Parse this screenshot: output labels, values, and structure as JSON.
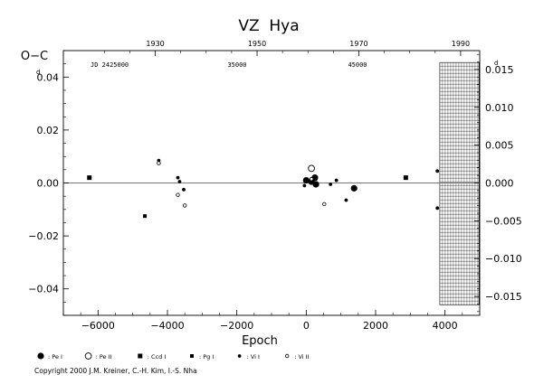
{
  "chart_data": {
    "type": "scatter",
    "title": "VZ  Hya",
    "xlabel": "Epoch",
    "ylabel": "O−C",
    "xlim": [
      -7000,
      5000
    ],
    "ylim": [
      -0.05,
      0.05
    ],
    "y2lim": [
      -0.0175,
      0.0175
    ],
    "x_ticks": [
      "−6000",
      "−4000",
      "−2000",
      "0",
      "2000",
      "4000"
    ],
    "y_ticks": [
      "0.04",
      "0.02",
      "0.00",
      "−0.02",
      "−0.04"
    ],
    "y2_ticks": [
      "0.015",
      "0.010",
      "0.005",
      "0.000",
      "−0.005",
      "−0.010",
      "−0.015"
    ],
    "top_year_ticks": [
      "1930",
      "1950",
      "1970",
      "1990"
    ],
    "top_jd_labels": [
      "JD 2425000",
      "35000",
      "45000"
    ],
    "y_left_corner_exponent": "d",
    "y_right_corner_exponent": "d",
    "series": [
      {
        "name": "Pe I",
        "marker": "filled-circle",
        "size": "large",
        "points": [
          [
            0,
            0.001
          ],
          [
            150,
            0.0005
          ],
          [
            250,
            0.002
          ],
          [
            280,
            -0.0005
          ],
          [
            1380,
            -0.002
          ]
        ]
      },
      {
        "name": "Pe II",
        "marker": "open-circle",
        "size": "large",
        "points": [
          [
            150,
            0.0055
          ]
        ]
      },
      {
        "name": "Ccd I",
        "marker": "filled-square",
        "size": "small",
        "points": [
          [
            -6250,
            0.002
          ],
          [
            2870,
            0.002
          ]
        ]
      },
      {
        "name": "Pg I",
        "marker": "filled-square",
        "size": "tiny",
        "points": [
          [
            -4650,
            -0.0125
          ]
        ]
      },
      {
        "name": "Vi I",
        "marker": "filled-dot",
        "size": "small",
        "points": [
          [
            -4250,
            0.0085
          ],
          [
            -3700,
            0.002
          ],
          [
            -3650,
            0.0005
          ],
          [
            -3530,
            -0.0025
          ],
          [
            -50,
            -0.001
          ],
          [
            280,
            0.0015
          ],
          [
            700,
            -0.0005
          ],
          [
            870,
            0.001
          ],
          [
            1150,
            -0.0065
          ],
          [
            3780,
            0.0045
          ],
          [
            3780,
            -0.0095
          ]
        ]
      },
      {
        "name": "Vi II",
        "marker": "open-dot",
        "size": "small",
        "points": [
          [
            -4250,
            0.0075
          ],
          [
            -3700,
            -0.0045
          ],
          [
            -3500,
            -0.0085
          ],
          [
            150,
            0.0015
          ],
          [
            520,
            -0.008
          ]
        ]
      }
    ],
    "hatched_region": {
      "x_from": 3850,
      "x_to": 4980,
      "y_from": -0.046,
      "y_to": 0.0455
    },
    "zero_line": 0,
    "grid": false,
    "legend_position": "bottom-left"
  },
  "legend": [
    {
      "label": ": Pe I",
      "marker": "filled-circle"
    },
    {
      "label": ": Pe II",
      "marker": "open-circle"
    },
    {
      "label": ": Ccd I",
      "marker": "filled-square"
    },
    {
      "label": ": Pg I",
      "marker": "filled-square-small"
    },
    {
      "label": ": Vi I",
      "marker": "filled-dot"
    },
    {
      "label": ": Vi II",
      "marker": "open-dot"
    }
  ],
  "copyright": "Copyright 2000 J.M. Kreiner, C.-H. Kim, I.-S. Nha",
  "colors": {
    "ink": "#000000",
    "background": "#ffffff"
  }
}
